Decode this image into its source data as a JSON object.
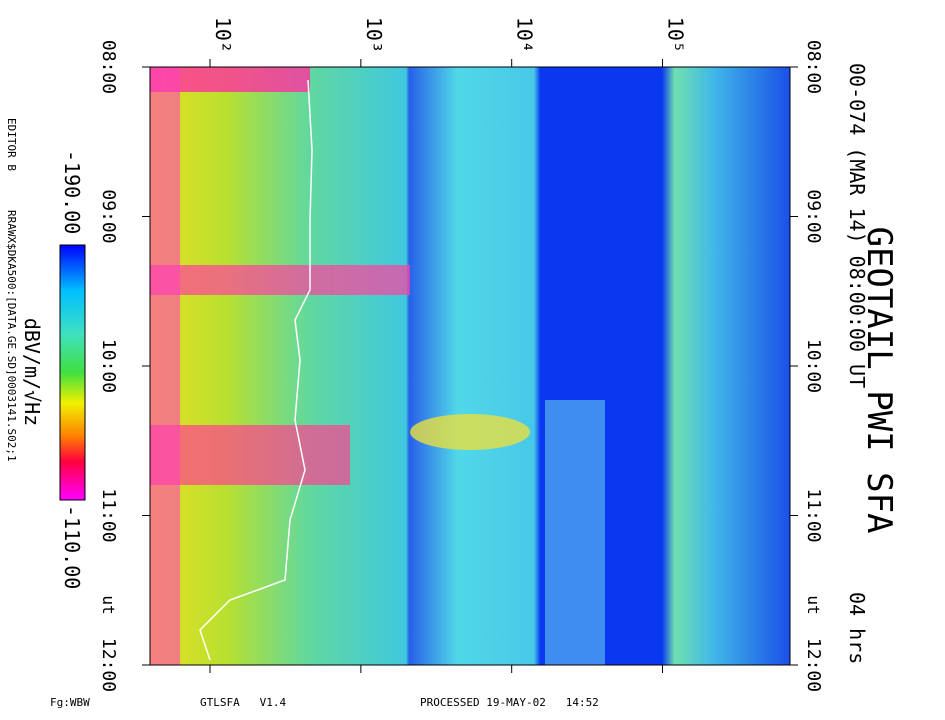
{
  "chart_data": {
    "type": "spectrogram",
    "title": "GEOTAIL PWI SFA",
    "subtitle": "00-074 (MAR 14) 08:00:00 UT",
    "duration": "04 hrs",
    "time_unit": "ut",
    "editor": "EDITOR B",
    "source_file": "RRAWX$DKA500:[DATA.GE.SD]0003141.S02;1",
    "xscale": "log",
    "xlim": [
      40,
      700000
    ],
    "xticks": [
      {
        "value": 100,
        "label": "10²"
      },
      {
        "value": 1000,
        "label": "10³"
      },
      {
        "value": 10000,
        "label": "10⁴"
      },
      {
        "value": 100000,
        "label": "10⁵"
      }
    ],
    "ylim": [
      "08:00",
      "12:00"
    ],
    "yticks": [
      "08:00",
      "09:00",
      "10:00",
      "11:00",
      "12:00"
    ],
    "colorbar": {
      "label": "dBV/m/√Hz",
      "range": [
        -190,
        -110
      ],
      "range_labels": [
        "-190.00",
        "-110.00"
      ]
    },
    "footer": {
      "left": "Fg:WBW",
      "middle": "GTLSFA   V1.4",
      "right": "PROCESSED 19-MAY-02   14:52"
    }
  }
}
